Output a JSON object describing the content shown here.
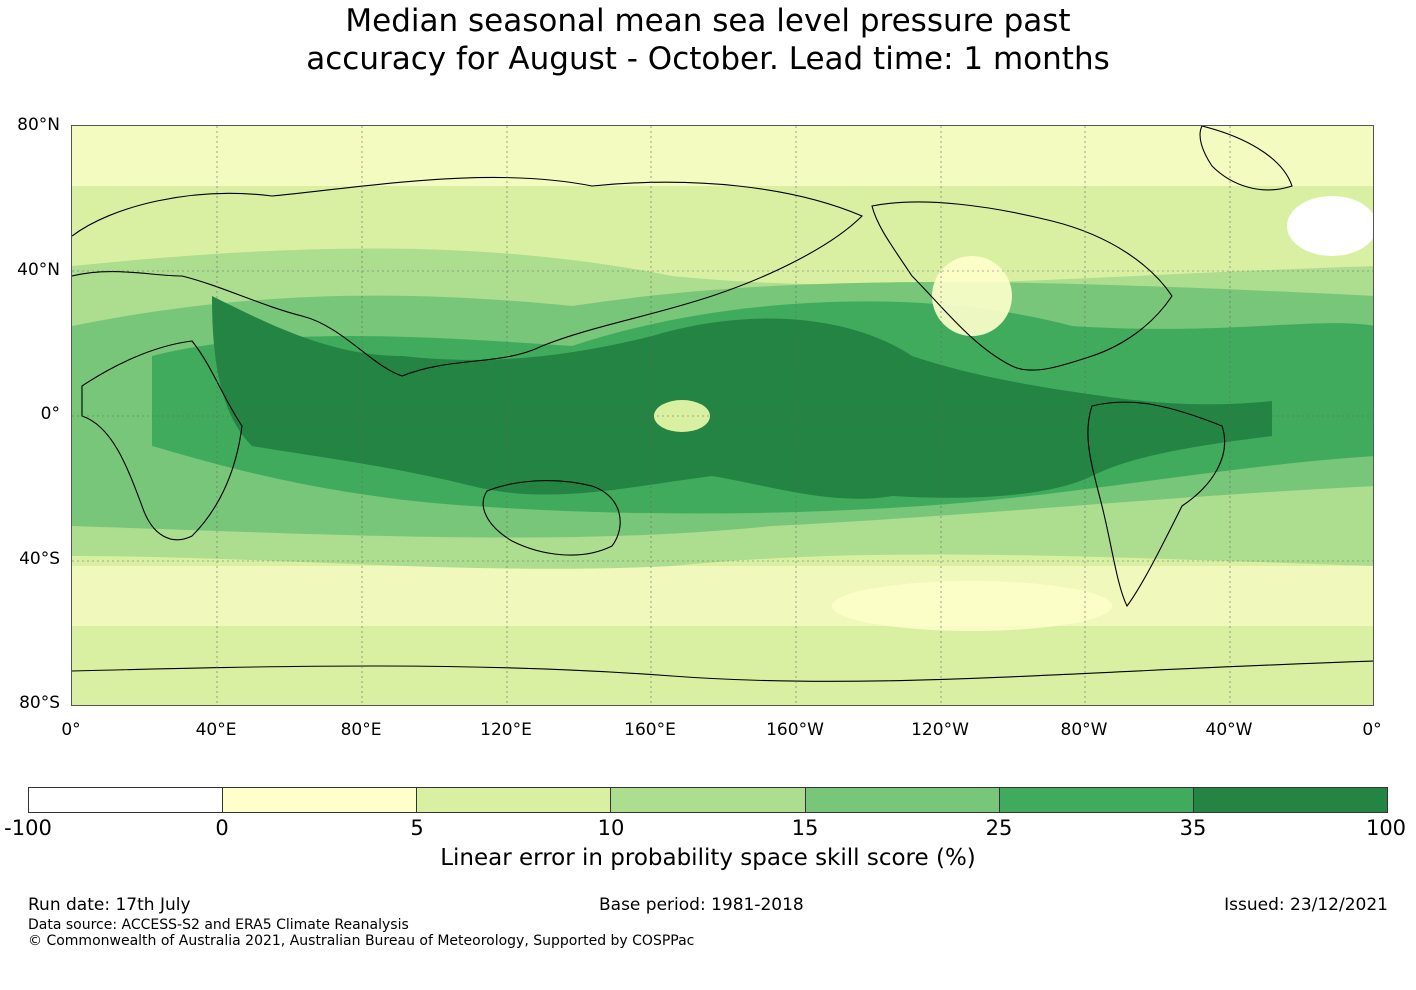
{
  "title": {
    "line1": "Median seasonal mean sea level pressure past",
    "line2": "accuracy for August - October. Lead time: 1 months"
  },
  "map": {
    "lat_labels": [
      "80°N",
      "40°N",
      "0°",
      "40°S",
      "80°S"
    ],
    "lon_labels": [
      "0°",
      "40°E",
      "80°E",
      "120°E",
      "160°E",
      "160°W",
      "120°W",
      "80°W",
      "40°W",
      "0°"
    ],
    "ocean_shading": "green skill-score field, darkest along tropical belt",
    "colors": {
      "band_neg": "#ffffff",
      "band_0_5": "#ffffcc",
      "band_5_10": "#d9f0a3",
      "band_10_15": "#addd8e",
      "band_15_25": "#78c679",
      "band_25_35": "#41ab5d",
      "band_35_100": "#238443",
      "coastline": "#000000",
      "grid": "#666666"
    }
  },
  "colorbar": {
    "ticks": [
      "-100",
      "0",
      "5",
      "10",
      "15",
      "25",
      "35",
      "100"
    ],
    "colors": [
      "#ffffff",
      "#ffffcc",
      "#d9f0a3",
      "#addd8e",
      "#78c679",
      "#41ab5d",
      "#238443"
    ],
    "label": "Linear error in probability space skill score (%)"
  },
  "footer": {
    "run_date": "Run date: 17th July",
    "base_period": "Base period: 1981-2018",
    "issued": "Issued: 23/12/2021",
    "data_source": "Data source: ACCESS-S2 and ERA5 Climate Reanalysis",
    "copyright": "© Commonwealth of Australia 2021, Australian Bureau of Meteorology, Supported by COSPPac"
  }
}
